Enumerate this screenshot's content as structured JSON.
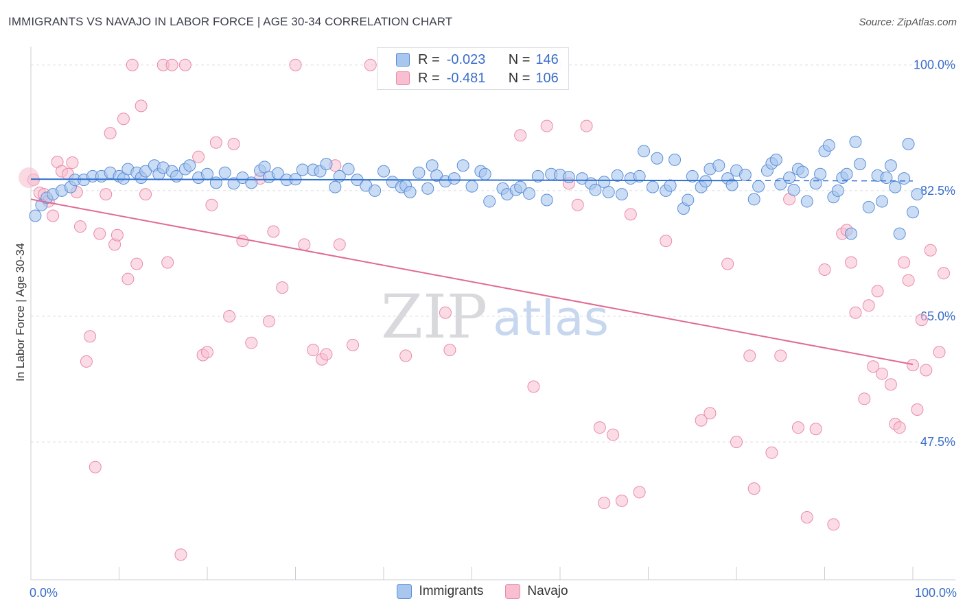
{
  "title": "IMMIGRANTS VS NAVAJO IN LABOR FORCE | AGE 30-34 CORRELATION CHART",
  "source": "Source: ZipAtlas.com",
  "watermark": {
    "zip": "ZIP",
    "atlas": "atlas"
  },
  "legend": {
    "rows": [
      {
        "r_label": "R =",
        "r_value": "-0.023",
        "n_label": "N =",
        "n_value": "146"
      },
      {
        "r_label": "R =",
        "r_value": "-0.481",
        "n_label": "N =",
        "n_value": "106"
      }
    ]
  },
  "bottom_legend": {
    "immigrants": "Immigrants",
    "navajo": "Navajo"
  },
  "colors": {
    "immigrants_fill": "#a9c6ef",
    "immigrants_stroke": "#5b8fd6",
    "immigrants_line": "#2f6fd0",
    "navajo_fill": "#f7bfd0",
    "navajo_stroke": "#e98aa9",
    "navajo_line": "#e06a93",
    "tick_label": "#3a6ec9",
    "grid": "#d9dde3"
  },
  "chart_data": {
    "type": "scatter",
    "title": "IMMIGRANTS VS NAVAJO IN LABOR FORCE | AGE 30-34 CORRELATION CHART",
    "xlabel": "",
    "ylabel": "In Labor Force | Age 30-34",
    "x_tick_labels": [
      "0.0%",
      "100.0%"
    ],
    "y_tick_labels": [
      "100.0%",
      "82.5%",
      "65.0%",
      "47.5%"
    ],
    "y_ticks": [
      100.0,
      82.5,
      65.0,
      47.5
    ],
    "xlim": [
      0,
      100
    ],
    "ylim": [
      28.3,
      101.6
    ],
    "series": [
      {
        "name": "Immigrants",
        "R": -0.023,
        "N": 146,
        "trend": {
          "x0": 0,
          "y0": 84.1,
          "x1": 80,
          "y1": 83.9,
          "dash_to": 100
        },
        "points": [
          [
            0.5,
            79
          ],
          [
            1.2,
            80.5
          ],
          [
            1.8,
            81.5
          ],
          [
            2.5,
            82
          ],
          [
            3.5,
            82.5
          ],
          [
            4.5,
            83
          ],
          [
            5,
            84
          ],
          [
            6,
            84
          ],
          [
            7,
            84.5
          ],
          [
            8,
            84.5
          ],
          [
            9,
            85
          ],
          [
            10,
            84.5
          ],
          [
            10.5,
            84.2
          ],
          [
            11,
            85.5
          ],
          [
            12,
            85
          ],
          [
            12.5,
            84.3
          ],
          [
            13,
            85.2
          ],
          [
            14,
            86
          ],
          [
            14.5,
            84.8
          ],
          [
            15,
            85.7
          ],
          [
            16,
            85.2
          ],
          [
            16.5,
            84.5
          ],
          [
            17.5,
            85.5
          ],
          [
            18,
            86
          ],
          [
            19,
            84.3
          ],
          [
            20,
            84.8
          ],
          [
            21,
            83.6
          ],
          [
            22,
            85
          ],
          [
            23,
            83.5
          ],
          [
            24,
            84.3
          ],
          [
            25,
            83.6
          ],
          [
            26,
            85.3
          ],
          [
            26.5,
            85.8
          ],
          [
            27,
            84.4
          ],
          [
            28,
            84.9
          ],
          [
            29,
            84
          ],
          [
            30,
            84.1
          ],
          [
            30.8,
            85.4
          ],
          [
            32,
            85.4
          ],
          [
            32.8,
            85.2
          ],
          [
            33.5,
            86.2
          ],
          [
            34.5,
            83
          ],
          [
            35,
            84.5
          ],
          [
            36,
            85.5
          ],
          [
            37,
            84
          ],
          [
            38,
            83.2
          ],
          [
            39,
            82.5
          ],
          [
            40,
            85.2
          ],
          [
            41,
            83.7
          ],
          [
            42,
            83
          ],
          [
            42.5,
            83.2
          ],
          [
            43,
            82.3
          ],
          [
            44,
            85
          ],
          [
            45,
            82.8
          ],
          [
            45.5,
            86
          ],
          [
            46,
            84.6
          ],
          [
            47,
            83.8
          ],
          [
            48,
            84.2
          ],
          [
            49,
            86
          ],
          [
            50,
            83.1
          ],
          [
            51,
            85.2
          ],
          [
            51.5,
            84.8
          ],
          [
            52,
            81
          ],
          [
            53.5,
            82.8
          ],
          [
            54,
            82
          ],
          [
            55,
            82.6
          ],
          [
            55.5,
            83
          ],
          [
            56.5,
            82.1
          ],
          [
            57.5,
            84.5
          ],
          [
            58.5,
            81.2
          ],
          [
            59,
            84.8
          ],
          [
            60,
            84.7
          ],
          [
            61,
            84.4
          ],
          [
            62.5,
            84.2
          ],
          [
            63.5,
            83.5
          ],
          [
            64,
            82.6
          ],
          [
            65,
            83.7
          ],
          [
            65.5,
            82.3
          ],
          [
            66.5,
            84.6
          ],
          [
            67,
            82
          ],
          [
            68,
            84.2
          ],
          [
            69,
            84.5
          ],
          [
            69.5,
            88
          ],
          [
            70.5,
            83
          ],
          [
            71,
            87
          ],
          [
            72,
            82.5
          ],
          [
            72.5,
            83.2
          ],
          [
            73,
            86.8
          ],
          [
            74,
            80
          ],
          [
            74.5,
            81.2
          ],
          [
            75,
            84.5
          ],
          [
            76,
            83
          ],
          [
            76.5,
            83.8
          ],
          [
            77,
            85.5
          ],
          [
            78,
            86
          ],
          [
            79,
            84.2
          ],
          [
            79.5,
            83.3
          ],
          [
            80,
            85.3
          ],
          [
            81,
            84.7
          ],
          [
            82,
            81.3
          ],
          [
            82.5,
            83.1
          ],
          [
            83.5,
            85.3
          ],
          [
            84,
            86.3
          ],
          [
            84.5,
            86.8
          ],
          [
            85,
            83.4
          ],
          [
            86,
            84.3
          ],
          [
            86.5,
            82.6
          ],
          [
            87,
            85.5
          ],
          [
            87.5,
            85.1
          ],
          [
            88,
            81
          ],
          [
            89,
            83.5
          ],
          [
            89.5,
            84.8
          ],
          [
            90,
            88
          ],
          [
            90.5,
            88.8
          ],
          [
            91,
            81.6
          ],
          [
            91.5,
            82.5
          ],
          [
            92,
            84.3
          ],
          [
            92.5,
            84.8
          ],
          [
            93,
            76.5
          ],
          [
            93.5,
            89.3
          ],
          [
            94,
            86.2
          ],
          [
            95,
            80.2
          ],
          [
            96,
            84.6
          ],
          [
            96.5,
            81
          ],
          [
            97,
            84.3
          ],
          [
            97.5,
            86
          ],
          [
            98,
            83
          ],
          [
            98.5,
            76.5
          ],
          [
            99,
            84.2
          ],
          [
            99.5,
            89
          ],
          [
            100,
            79.5
          ],
          [
            100.5,
            82
          ]
        ]
      },
      {
        "name": "Navajo",
        "R": -0.481,
        "N": 106,
        "trend": {
          "x0": 0,
          "y0": 81.3,
          "x1": 100,
          "y1": 58.3
        },
        "points": [
          [
            0.3,
            84
          ],
          [
            1,
            82.2
          ],
          [
            1.5,
            82
          ],
          [
            2,
            81
          ],
          [
            2.5,
            79
          ],
          [
            3,
            86.5
          ],
          [
            3.5,
            85.2
          ],
          [
            4.2,
            84.8
          ],
          [
            4.7,
            86.4
          ],
          [
            5.2,
            82.3
          ],
          [
            5.6,
            77.5
          ],
          [
            6.3,
            58.7
          ],
          [
            6.7,
            62.2
          ],
          [
            7.3,
            44
          ],
          [
            7.8,
            76.5
          ],
          [
            8.5,
            82
          ],
          [
            9,
            90.5
          ],
          [
            9.5,
            75
          ],
          [
            9.8,
            76.3
          ],
          [
            10.5,
            92.5
          ],
          [
            11,
            70.2
          ],
          [
            11.5,
            100
          ],
          [
            12,
            72.3
          ],
          [
            12.5,
            94.3
          ],
          [
            13,
            82
          ],
          [
            15,
            100
          ],
          [
            15.5,
            72.5
          ],
          [
            16,
            100
          ],
          [
            17,
            31.8
          ],
          [
            17.5,
            100
          ],
          [
            19,
            87.2
          ],
          [
            19.5,
            59.6
          ],
          [
            20,
            60
          ],
          [
            20.5,
            80.5
          ],
          [
            21,
            89.2
          ],
          [
            22.5,
            65
          ],
          [
            23,
            89
          ],
          [
            24,
            75.5
          ],
          [
            25,
            61.3
          ],
          [
            26,
            84.2
          ],
          [
            27,
            64.3
          ],
          [
            27.5,
            76.8
          ],
          [
            28.5,
            69
          ],
          [
            30,
            100
          ],
          [
            31,
            75
          ],
          [
            32,
            60.3
          ],
          [
            33,
            59
          ],
          [
            33.5,
            59.7
          ],
          [
            34.5,
            86
          ],
          [
            35,
            75
          ],
          [
            36.5,
            61
          ],
          [
            38.5,
            100
          ],
          [
            42.5,
            59.5
          ],
          [
            47,
            65.5
          ],
          [
            47.5,
            60.3
          ],
          [
            55.5,
            90.2
          ],
          [
            57,
            55.2
          ],
          [
            58.5,
            91.5
          ],
          [
            59.5,
            100
          ],
          [
            61,
            83.5
          ],
          [
            62,
            80.5
          ],
          [
            63,
            91.5
          ],
          [
            64.5,
            49.5
          ],
          [
            65,
            39
          ],
          [
            66,
            48.5
          ],
          [
            67,
            39.3
          ],
          [
            68,
            79.2
          ],
          [
            69,
            40.5
          ],
          [
            72,
            75.5
          ],
          [
            76,
            50.5
          ],
          [
            77,
            51.5
          ],
          [
            79,
            72.3
          ],
          [
            80,
            47.5
          ],
          [
            81.5,
            59.5
          ],
          [
            82,
            41
          ],
          [
            84,
            46
          ],
          [
            85,
            59.5
          ],
          [
            86,
            81.3
          ],
          [
            87,
            49.5
          ],
          [
            88,
            37
          ],
          [
            89,
            49.3
          ],
          [
            90,
            71.5
          ],
          [
            91,
            36
          ],
          [
            92,
            76.5
          ],
          [
            92.5,
            77
          ],
          [
            93,
            72.5
          ],
          [
            93.5,
            65.5
          ],
          [
            94.5,
            53.5
          ],
          [
            95,
            66.5
          ],
          [
            95.5,
            58
          ],
          [
            96,
            68.5
          ],
          [
            96.5,
            57
          ],
          [
            97.5,
            55.5
          ],
          [
            98,
            50
          ],
          [
            98.5,
            49.5
          ],
          [
            99,
            72.5
          ],
          [
            99.5,
            70
          ],
          [
            100,
            58.2
          ],
          [
            100.5,
            52
          ],
          [
            101,
            64.5
          ],
          [
            101.5,
            57.5
          ],
          [
            102,
            74.2
          ],
          [
            103,
            60
          ],
          [
            103.5,
            71
          ]
        ]
      }
    ]
  }
}
